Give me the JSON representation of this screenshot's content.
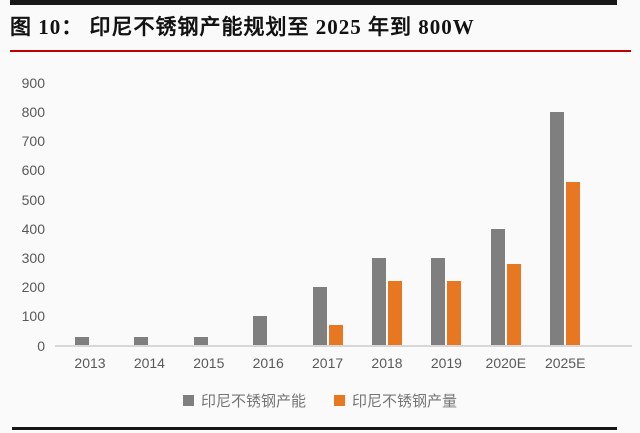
{
  "header": {
    "title": "图 10：  印尼不锈钢产能规划至 2025 年到 800W"
  },
  "chart_data": {
    "type": "bar",
    "categories": [
      "2013",
      "2014",
      "2015",
      "2016",
      "2017",
      "2018",
      "2019",
      "2020E",
      "2025E"
    ],
    "series": [
      {
        "name": "印尼不锈钢产能",
        "color": "#7f7f7f",
        "values": [
          30,
          30,
          30,
          100,
          200,
          300,
          300,
          400,
          800
        ]
      },
      {
        "name": "印尼不锈钢产量",
        "color": "#e87722",
        "values": [
          0,
          0,
          0,
          0,
          70,
          220,
          220,
          280,
          560
        ]
      }
    ],
    "title": "",
    "xlabel": "",
    "ylabel": "",
    "ylim": [
      0,
      900
    ],
    "ytick_step": 100,
    "grid": false,
    "legend_position": "bottom"
  },
  "colors": {
    "accent_red": "#c00000",
    "rule_black": "#181818",
    "bar_gray": "#7f7f7f",
    "bar_orange": "#e87722",
    "axis_line": "#d8d6d6",
    "tick_text": "#595959",
    "legend_text": "#757575"
  }
}
